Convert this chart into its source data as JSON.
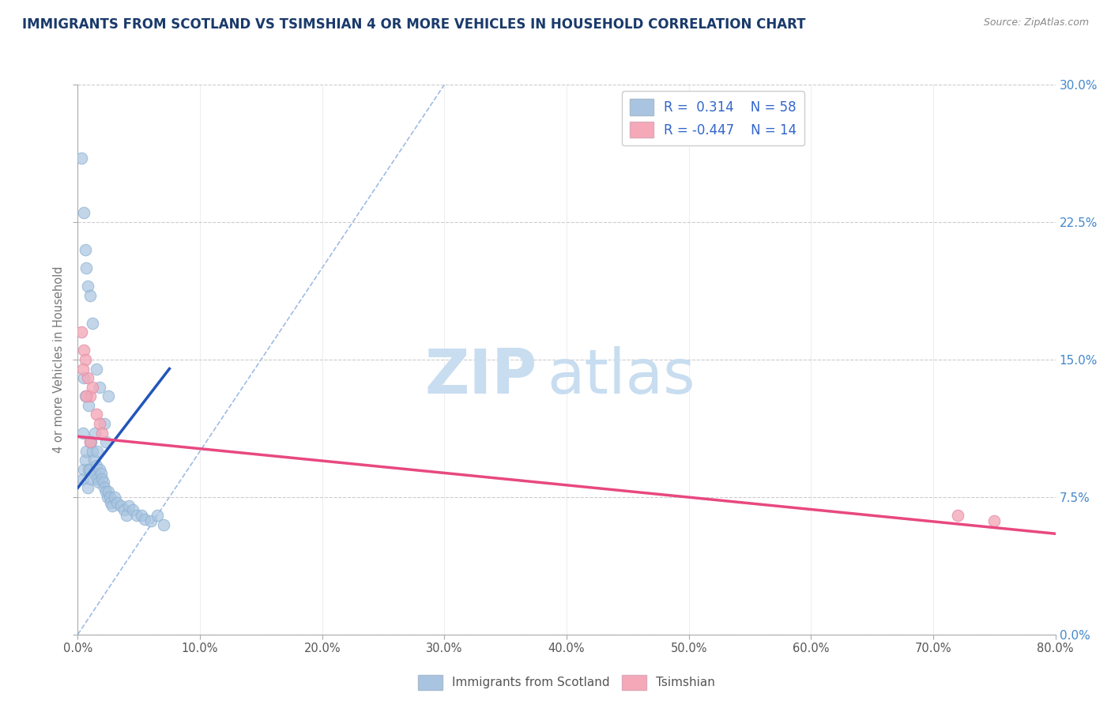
{
  "title": "IMMIGRANTS FROM SCOTLAND VS TSIMSHIAN 4 OR MORE VEHICLES IN HOUSEHOLD CORRELATION CHART",
  "source": "Source: ZipAtlas.com",
  "xlabel": "",
  "ylabel": "4 or more Vehicles in Household",
  "xlim": [
    0.0,
    80.0
  ],
  "ylim": [
    0.0,
    30.0
  ],
  "xticks": [
    0.0,
    10.0,
    20.0,
    30.0,
    40.0,
    50.0,
    60.0,
    70.0,
    80.0
  ],
  "yticks_right": [
    0.0,
    7.5,
    15.0,
    22.5,
    30.0
  ],
  "r_blue": 0.314,
  "n_blue": 58,
  "r_pink": -0.447,
  "n_pink": 14,
  "blue_color": "#a8c4e0",
  "pink_color": "#f4a8b8",
  "blue_line_color": "#2255bb",
  "pink_line_color": "#e84880",
  "title_color": "#1a3a6b",
  "axis_label_color": "#777777",
  "tick_color_right_blue": "#4488cc",
  "watermark_zip": "ZIP",
  "watermark_atlas": "atlas",
  "watermark_color": "#c8ddf0",
  "ref_line_color": "#88aadd",
  "blue_scatter_x": [
    0.3,
    0.4,
    0.5,
    0.6,
    0.7,
    0.8,
    0.9,
    1.0,
    1.0,
    1.1,
    1.2,
    1.3,
    1.4,
    1.5,
    1.6,
    1.7,
    1.8,
    1.9,
    2.0,
    2.1,
    2.2,
    2.3,
    2.4,
    2.5,
    2.6,
    2.7,
    2.8,
    3.0,
    3.2,
    3.5,
    3.8,
    4.0,
    4.2,
    4.5,
    4.8,
    5.2,
    5.5,
    6.0,
    6.5,
    7.0,
    0.5,
    0.6,
    0.7,
    0.8,
    1.0,
    1.2,
    1.5,
    1.8,
    2.2,
    2.5,
    0.4,
    0.5,
    0.6,
    0.9,
    1.1,
    1.4,
    1.6,
    2.3
  ],
  "blue_scatter_y": [
    26.0,
    8.5,
    9.0,
    9.5,
    10.0,
    8.0,
    9.0,
    10.5,
    9.0,
    8.5,
    10.0,
    9.5,
    8.8,
    9.2,
    8.5,
    8.3,
    9.0,
    8.8,
    8.5,
    8.3,
    8.0,
    7.8,
    7.5,
    7.8,
    7.5,
    7.2,
    7.0,
    7.5,
    7.2,
    7.0,
    6.8,
    6.5,
    7.0,
    6.8,
    6.5,
    6.5,
    6.3,
    6.2,
    6.5,
    6.0,
    23.0,
    21.0,
    20.0,
    19.0,
    18.5,
    17.0,
    14.5,
    13.5,
    11.5,
    13.0,
    11.0,
    14.0,
    13.0,
    12.5,
    10.5,
    11.0,
    10.0,
    10.5
  ],
  "pink_scatter_x": [
    0.3,
    0.5,
    0.6,
    0.8,
    1.0,
    1.2,
    1.5,
    1.8,
    2.0,
    0.4,
    0.7,
    1.0,
    72.0,
    75.0
  ],
  "pink_scatter_y": [
    16.5,
    15.5,
    15.0,
    14.0,
    13.0,
    13.5,
    12.0,
    11.5,
    11.0,
    14.5,
    13.0,
    10.5,
    6.5,
    6.2
  ],
  "blue_trend_x": [
    0.0,
    7.5
  ],
  "blue_trend_y": [
    8.0,
    14.5
  ],
  "pink_trend_x": [
    0.0,
    80.0
  ],
  "pink_trend_y": [
    10.8,
    5.5
  ],
  "ref_line_x": [
    0.0,
    30.0
  ],
  "ref_line_y": [
    0.0,
    30.0
  ]
}
